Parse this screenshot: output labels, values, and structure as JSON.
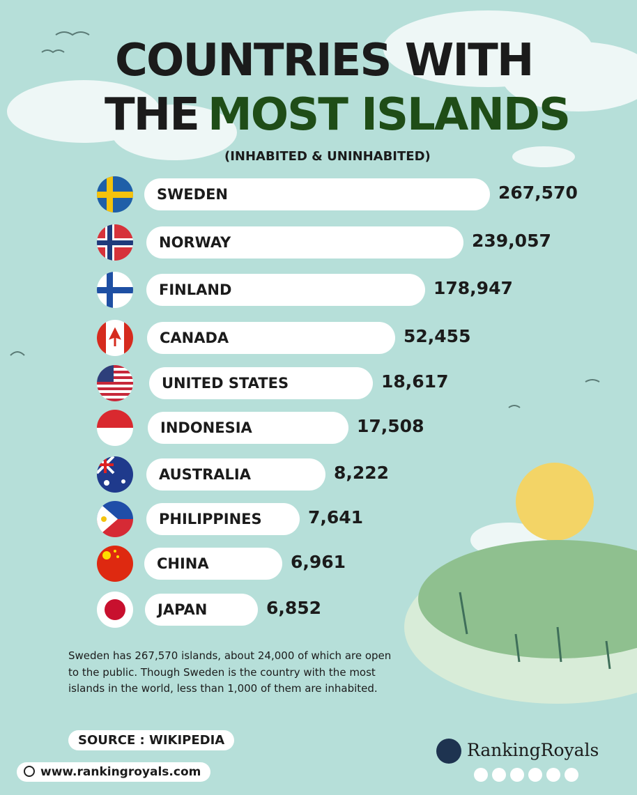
{
  "header": {
    "title_line1": "COUNTRIES WITH",
    "title_line2_a": "THE",
    "title_line2_b": "MOST ISLANDS",
    "subtitle": "(INHABITED & UNINHABITED)"
  },
  "rows": [
    {
      "country": "SWEDEN",
      "islands": "267,570"
    },
    {
      "country": "NORWAY",
      "islands": "239,057"
    },
    {
      "country": "FINLAND",
      "islands": "178,947"
    },
    {
      "country": "CANADA",
      "islands": "52,455"
    },
    {
      "country": "UNITED STATES",
      "islands": "18,617"
    },
    {
      "country": "INDONESIA",
      "islands": "17,508"
    },
    {
      "country": "AUSTRALIA",
      "islands": "8,222"
    },
    {
      "country": "PHILIPPINES",
      "islands": "7,641"
    },
    {
      "country": "CHINA",
      "islands": "6,961"
    },
    {
      "country": "JAPAN",
      "islands": "6,852"
    }
  ],
  "note": "Sweden has 267,570 islands, about 24,000 of which are open to the public. Though Sweden is the country with the most islands in the world, less than 1,000 of them are inhabited.",
  "source": "SOURCE : WIKIPEDIA",
  "website": "www.rankingroyals.com",
  "brand": "RankingRoyals"
}
